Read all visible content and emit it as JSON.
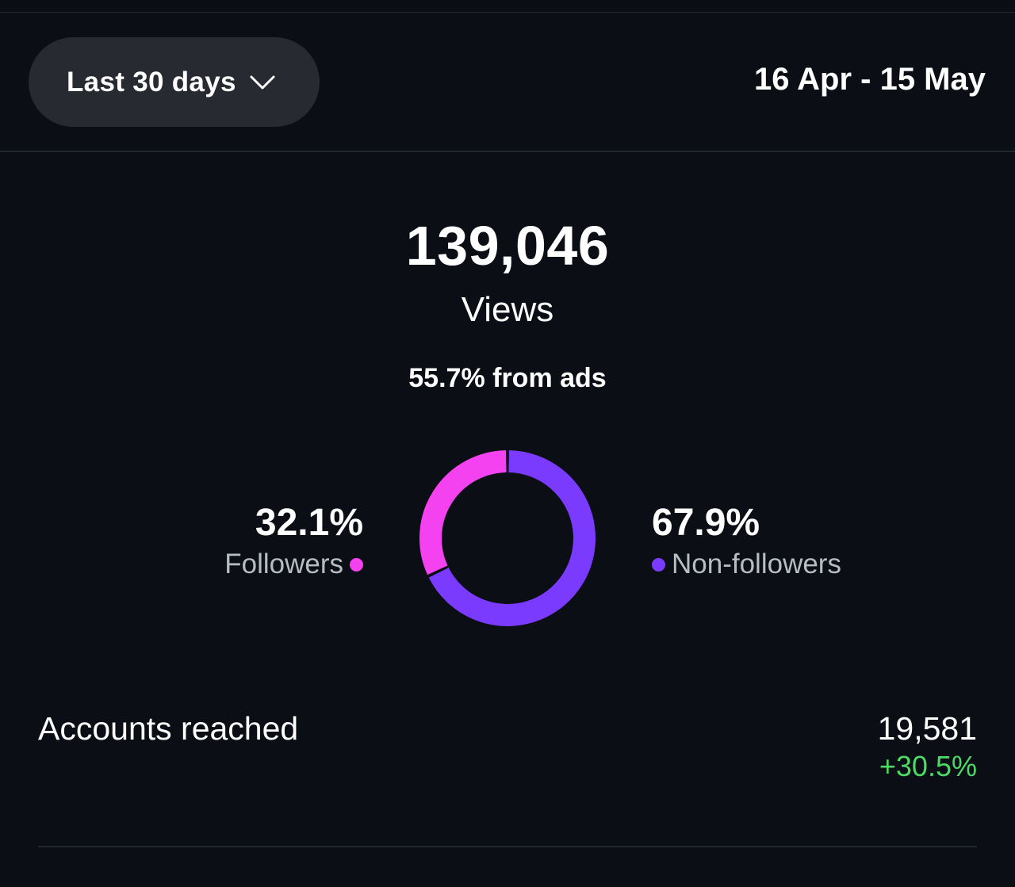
{
  "header": {
    "range_selector_label": "Last 30 days",
    "date_range": "16 Apr - 15 May"
  },
  "views": {
    "count": "139,046",
    "label": "Views",
    "ads_share": "55.7% from ads"
  },
  "audience": {
    "followers": {
      "percent": "32.1%",
      "label": "Followers",
      "value": 32.1,
      "color": "#f542f0"
    },
    "non_followers": {
      "percent": "67.9%",
      "label": "Non-followers",
      "value": 67.9,
      "color": "#7b3bff"
    }
  },
  "reach": {
    "label": "Accounts reached",
    "value": "19,581",
    "change": "+30.5%",
    "change_color": "#4cd964"
  },
  "icons": {
    "range_dropdown": "chevron-down-icon"
  }
}
